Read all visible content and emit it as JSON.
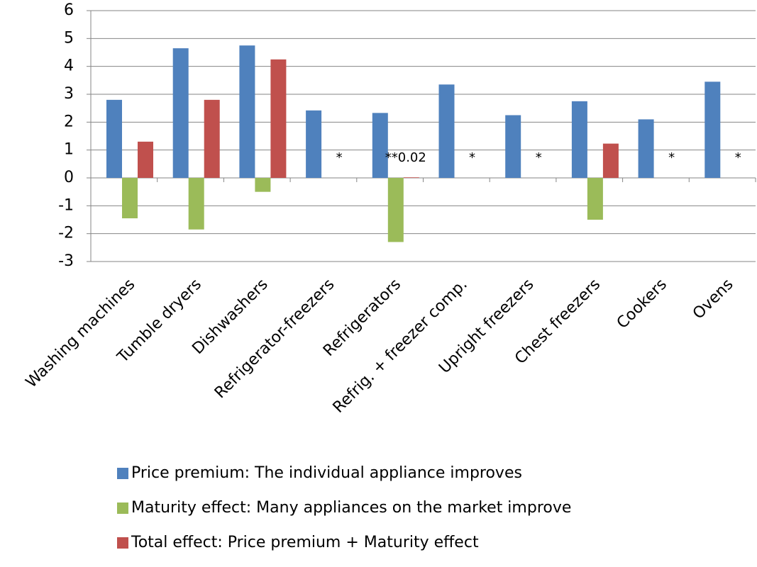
{
  "chart_data": {
    "type": "bar",
    "categories": [
      "Washing machines",
      "Tumble dryers",
      "Dishwashers",
      "Refrigerator-freezers",
      "Refrigerators",
      "Refrig. + freezer comp.",
      "Upright freezers",
      "Chest freezers",
      "Cookers",
      "Ovens"
    ],
    "series": [
      {
        "name": "Price premium: The individual appliance improves",
        "color": "#4f81bd",
        "values": [
          2.8,
          4.65,
          4.75,
          2.42,
          2.33,
          3.35,
          2.25,
          2.75,
          2.1,
          3.45
        ]
      },
      {
        "name": "Maturity effect: Many appliances on the market improve",
        "color": "#9bbb59",
        "values": [
          -1.45,
          -1.85,
          -0.5,
          null,
          -2.3,
          null,
          null,
          -1.5,
          null,
          null
        ]
      },
      {
        "name": "Total effect: Price premium + Maturity effect",
        "color": "#c0504d",
        "values": [
          1.3,
          2.8,
          4.25,
          null,
          0.02,
          null,
          null,
          1.23,
          null,
          null
        ],
        "value_labels": [
          null,
          null,
          null,
          "*",
          "**0.02",
          "*",
          "*",
          null,
          "*",
          "*"
        ]
      }
    ],
    "ylim": [
      -3,
      6
    ],
    "yticks": [
      -3,
      -2,
      -1,
      0,
      1,
      2,
      3,
      4,
      5,
      6
    ],
    "grid": true,
    "legend": "bottom"
  }
}
